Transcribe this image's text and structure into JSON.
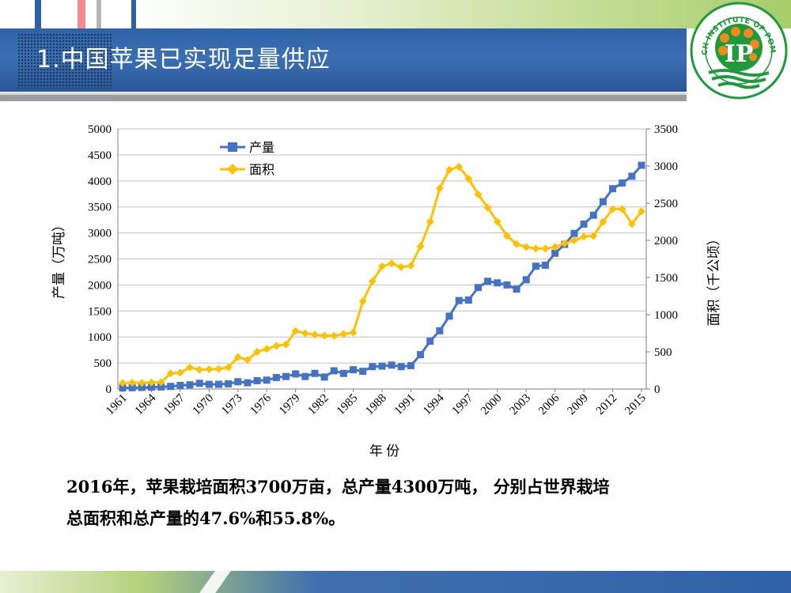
{
  "slide": {
    "title": "1.中国苹果已实现足量供应",
    "caption_line1": "2016年，苹果栽培面积3700万亩，总产量4300万吨， 分别占世界栽培",
    "caption_line2": "总面积和总产量的47.6%和55.8%。",
    "logo_text": "THE RESEARCH INSTITUTE OF POMOLOGY CAAS",
    "logo_mark": "IP"
  },
  "colors": {
    "header_blue": "#2f63a8",
    "series_production": "#4472c4",
    "series_area": "#ffc000",
    "logo_green": "#1e9a3a",
    "logo_orange": "#ef8a1f"
  },
  "chart_data": {
    "type": "line",
    "xlabel": "年 份",
    "ylabel_left": "产量（万吨）",
    "ylabel_right": "面积（千公顷）",
    "ylim_left": [
      0,
      5000
    ],
    "yticks_left": [
      0,
      500,
      1000,
      1500,
      2000,
      2500,
      3000,
      3500,
      4000,
      4500,
      5000
    ],
    "ylim_right": [
      0,
      3500
    ],
    "yticks_right": [
      0,
      500,
      1000,
      1500,
      2000,
      2500,
      3000,
      3500
    ],
    "grid": true,
    "legend_position": "top-left",
    "x": [
      1961,
      1962,
      1963,
      1964,
      1965,
      1966,
      1967,
      1968,
      1969,
      1970,
      1971,
      1972,
      1973,
      1974,
      1975,
      1976,
      1977,
      1978,
      1979,
      1980,
      1981,
      1982,
      1983,
      1984,
      1985,
      1986,
      1987,
      1988,
      1989,
      1990,
      1991,
      1992,
      1993,
      1994,
      1995,
      1996,
      1997,
      1998,
      1999,
      2000,
      2001,
      2002,
      2003,
      2004,
      2005,
      2006,
      2007,
      2008,
      2009,
      2010,
      2011,
      2012,
      2013,
      2014,
      2015
    ],
    "x_tick_labels": [
      "1961",
      "1964",
      "1967",
      "1970",
      "1973",
      "1976",
      "1979",
      "1982",
      "1985",
      "1988",
      "1991",
      "1994",
      "1997",
      "2000",
      "2003",
      "2006",
      "2009",
      "2012",
      "2015"
    ],
    "series": [
      {
        "name": "产量",
        "axis": "left",
        "marker": "square",
        "values": [
          20,
          25,
          30,
          35,
          40,
          50,
          70,
          80,
          110,
          90,
          90,
          100,
          140,
          120,
          160,
          170,
          220,
          240,
          290,
          240,
          300,
          230,
          350,
          300,
          370,
          340,
          430,
          440,
          460,
          430,
          450,
          660,
          920,
          1120,
          1400,
          1700,
          1710,
          1950,
          2070,
          2040,
          2000,
          1920,
          2100,
          2360,
          2380,
          2610,
          2780,
          2990,
          3170,
          3340,
          3600,
          3850,
          3960,
          4090,
          4300
        ]
      },
      {
        "name": "面积",
        "axis": "right",
        "marker": "diamond",
        "values": [
          80,
          85,
          82,
          88,
          90,
          210,
          220,
          290,
          260,
          265,
          270,
          290,
          430,
          390,
          500,
          540,
          580,
          600,
          780,
          750,
          730,
          720,
          715,
          740,
          760,
          1180,
          1450,
          1650,
          1690,
          1640,
          1660,
          1920,
          2250,
          2700,
          2950,
          2990,
          2830,
          2620,
          2440,
          2250,
          2060,
          1950,
          1910,
          1890,
          1890,
          1910,
          1960,
          2000,
          2050,
          2060,
          2250,
          2420,
          2420,
          2220,
          2390
        ]
      }
    ]
  }
}
